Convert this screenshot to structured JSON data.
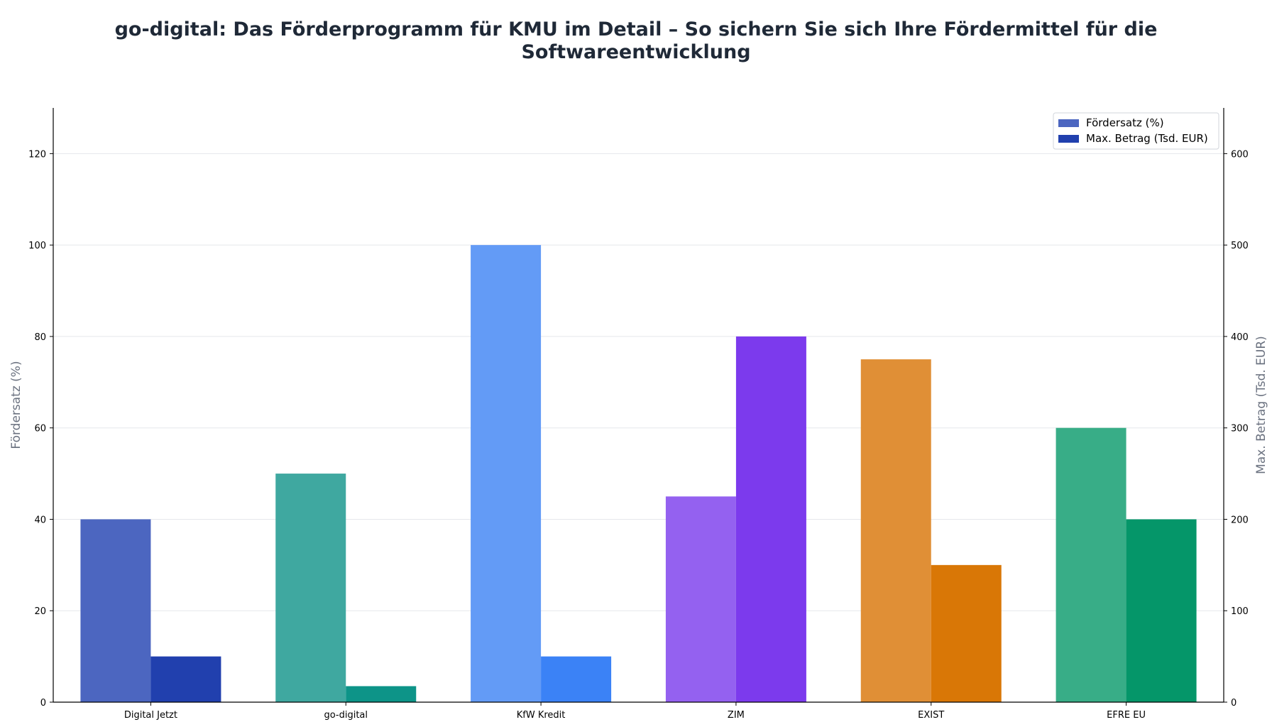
{
  "title_line1": "go-digital: Das Förderprogramm für KMU im Detail – So sichern Sie sich Ihre Fördermittel für die",
  "title_line2": "Softwareentwicklung",
  "chart_data": {
    "type": "bar",
    "title": "go-digital: Das Förderprogramm für KMU im Detail – So sichern Sie sich Ihre Fördermittel für die Softwareentwicklung",
    "categories": [
      "Digital Jetzt",
      "go-digital",
      "KfW Kredit",
      "ZIM",
      "EXIST",
      "EFRE EU"
    ],
    "series": [
      {
        "name": "Fördersatz (%)",
        "axis": "left",
        "values": [
          40,
          50,
          100,
          45,
          75,
          60
        ],
        "colors": [
          "#4c66c0",
          "#3fa8a0",
          "#639bf6",
          "#9461f0",
          "#e08f36",
          "#38ad87"
        ]
      },
      {
        "name": "Max. Betrag (Tsd. EUR)",
        "axis": "right",
        "values": [
          50,
          17.5,
          50,
          400,
          150,
          200
        ],
        "colors": [
          "#2140ae",
          "#0d9488",
          "#3b82f6",
          "#7c3aed",
          "#d97706",
          "#059669"
        ]
      }
    ],
    "ylabel": "Fördersatz (%)",
    "ylabel_right": "Max. Betrag (Tsd. EUR)",
    "ylim": [
      0,
      130
    ],
    "ylim_right": [
      0,
      650
    ],
    "yticks": [
      0,
      20,
      40,
      60,
      80,
      100,
      120
    ],
    "yticks_right": [
      0,
      100,
      200,
      300,
      400,
      500,
      600
    ],
    "grid": true,
    "legend": "top-right",
    "legend_colors": [
      "#4c66c0",
      "#2140ae"
    ]
  }
}
